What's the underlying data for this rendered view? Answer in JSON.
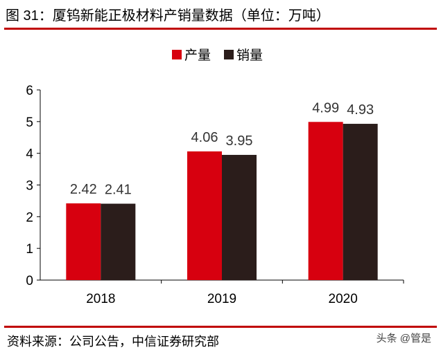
{
  "title": "图 31：厦钨新能正极材料产销量数据（单位：万吨）",
  "source": "资料来源：公司公告，中信证券研究部",
  "watermark": "头条 @管是",
  "chart_data": {
    "type": "bar",
    "categories": [
      "2018",
      "2019",
      "2020"
    ],
    "series": [
      {
        "name": "产量",
        "values": [
          2.42,
          4.06,
          4.99
        ],
        "color": "#D7000F"
      },
      {
        "name": "销量",
        "values": [
          2.41,
          3.95,
          4.93
        ],
        "color": "#2B1D1B"
      }
    ],
    "ylim": [
      0,
      6
    ],
    "yticks": [
      0,
      1,
      2,
      3,
      4,
      5,
      6
    ],
    "legend": "top",
    "grid": false
  }
}
